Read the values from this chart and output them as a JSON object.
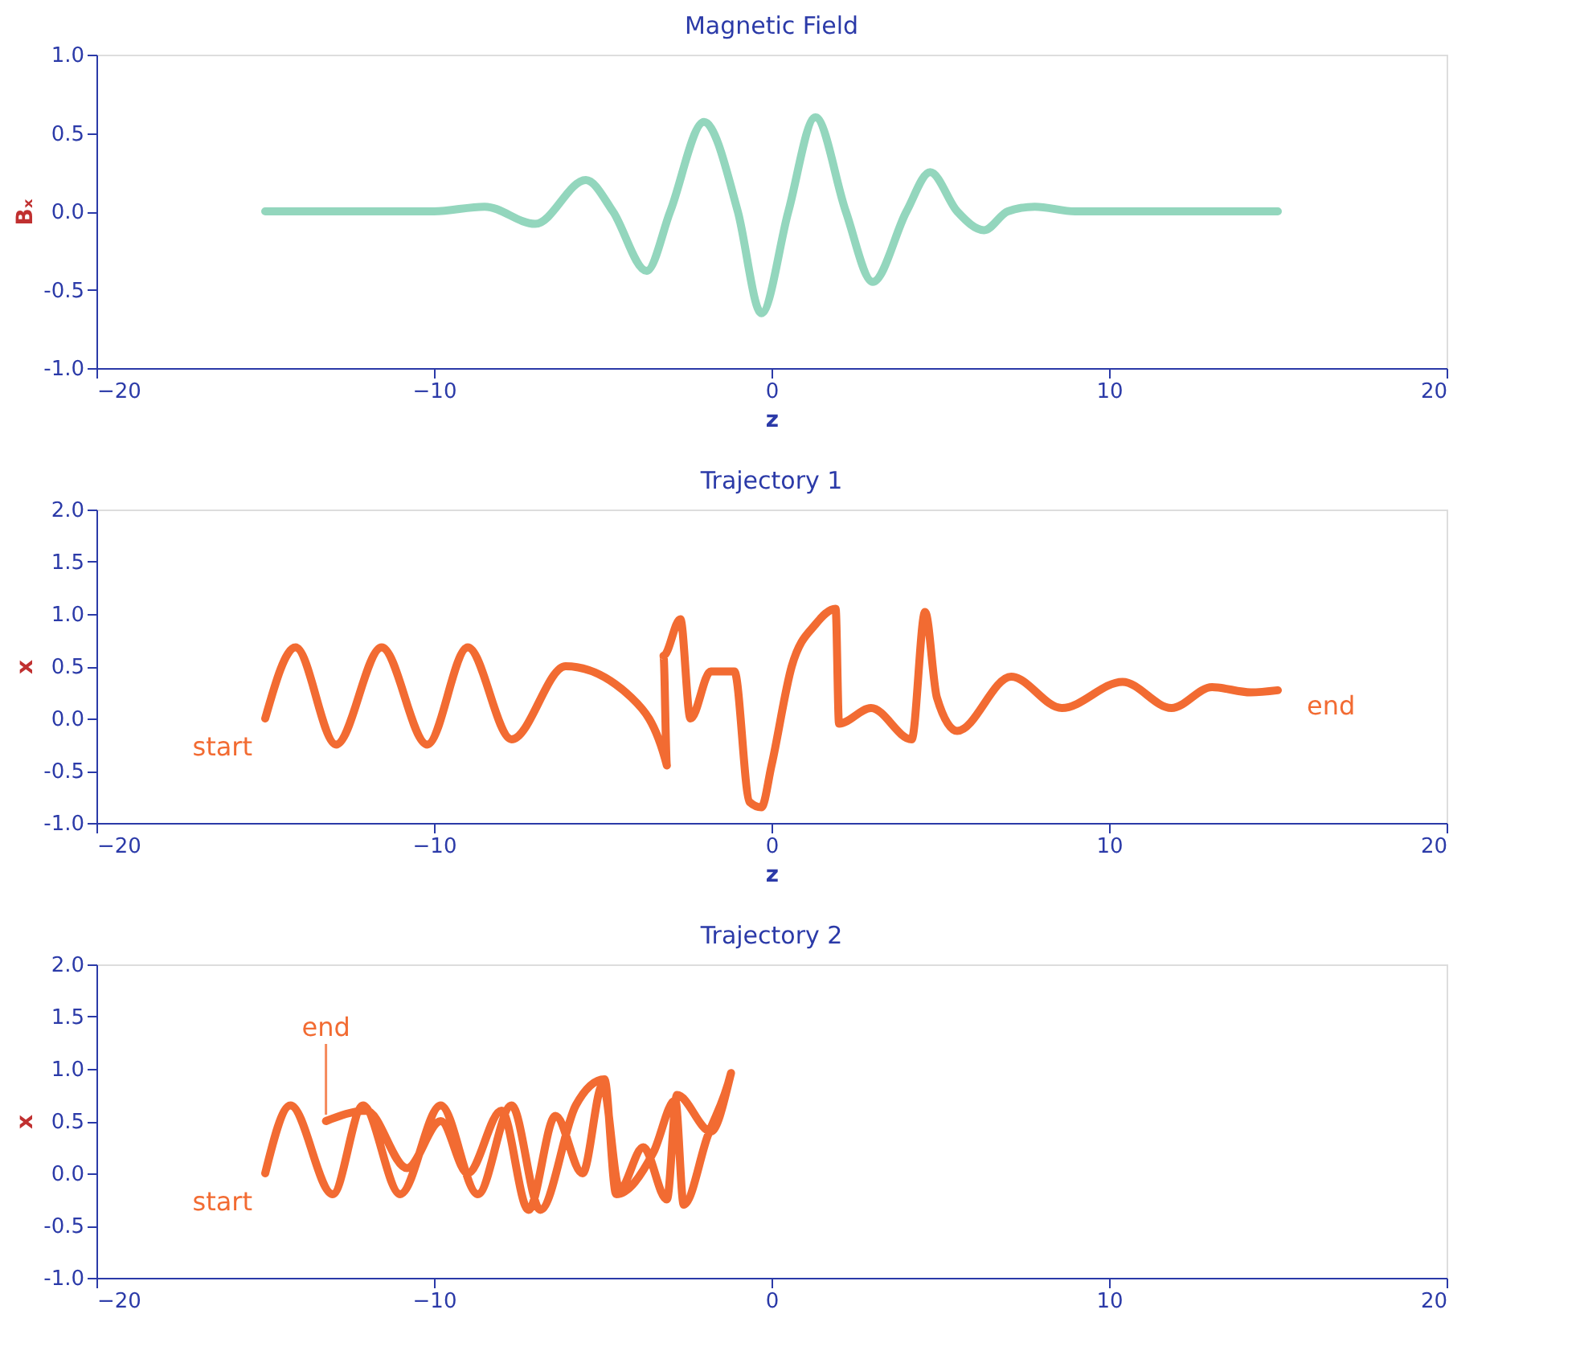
{
  "chart_data": [
    {
      "type": "line",
      "title": "Magnetic Field",
      "xlabel": "z",
      "ylabel": "Bₓ",
      "xlim": [
        -20,
        20
      ],
      "xticks": [
        -20,
        -10,
        0,
        10,
        20
      ],
      "ylim": [
        -1,
        1
      ],
      "yticks": [
        {
          "value": -1,
          "label": "-1.0"
        },
        {
          "value": -0.5,
          "label": "-0.5"
        },
        {
          "value": 0,
          "label": "0.0"
        },
        {
          "value": 0.5,
          "label": "0.5"
        },
        {
          "value": 1,
          "label": "1.0"
        }
      ],
      "grid": false,
      "series": [
        {
          "color": "#93d6bd",
          "x": [
            -15,
            -12,
            -10,
            -8.5,
            -7,
            -5.5,
            -4.7,
            -3.7,
            -3,
            -2,
            -1,
            -0.3,
            0.5,
            1.3,
            2.2,
            3,
            4,
            4.7,
            5.5,
            6.3,
            7,
            7.8,
            9,
            12,
            15
          ],
          "values": [
            0,
            0,
            0,
            0.03,
            -0.08,
            0.2,
            0,
            -0.38,
            0,
            0.57,
            0,
            -0.65,
            0,
            0.6,
            0,
            -0.45,
            0,
            0.25,
            0,
            -0.12,
            0,
            0.03,
            0,
            0,
            0
          ]
        }
      ]
    },
    {
      "type": "line",
      "title": "Trajectory 1",
      "xlabel": "z",
      "ylabel": "x",
      "xlim": [
        -20,
        20
      ],
      "xticks": [
        -20,
        -10,
        0,
        10,
        20
      ],
      "ylim": [
        -1,
        2
      ],
      "yticks": [
        {
          "value": -1,
          "label": "-1.0"
        },
        {
          "value": -0.5,
          "label": "-0.5"
        },
        {
          "value": 0,
          "label": "0.0"
        },
        {
          "value": 0.5,
          "label": "0.5"
        },
        {
          "value": 1,
          "label": "1.0"
        },
        {
          "value": 1.5,
          "label": "1.5"
        },
        {
          "value": 2,
          "label": "2.0"
        }
      ],
      "grid": false,
      "annotations": [
        {
          "text": "start",
          "x": -15,
          "y": 0
        },
        {
          "text": "end",
          "x": 15,
          "y": 0.27
        }
      ],
      "series": [
        {
          "color": "#f26b32",
          "x": [
            -15,
            -14.1,
            -12.9,
            -11.55,
            -10.2,
            -9,
            -7.7,
            -6.1,
            -4.15,
            -3.1,
            -3.2,
            -2.7,
            -2.4,
            -1.8,
            -1.1,
            -0.65,
            -0.3,
            0,
            0.6,
            1.3,
            1.9,
            2,
            2.95,
            4.15,
            4.55,
            4.9,
            5.5,
            7.1,
            8.6,
            10.4,
            11.85,
            13.05,
            14.2,
            15
          ],
          "values": [
            0,
            0.68,
            -0.25,
            0.68,
            -0.25,
            0.68,
            -0.2,
            0.5,
            0.2,
            -0.45,
            0.6,
            0.95,
            0,
            0.45,
            0.45,
            -0.8,
            -0.85,
            -0.45,
            0.5,
            0.9,
            1.05,
            -0.05,
            0.1,
            -0.2,
            1.02,
            0.2,
            -0.12,
            0.4,
            0.1,
            0.35,
            0.1,
            0.3,
            0.25,
            0.27
          ]
        }
      ]
    },
    {
      "type": "line",
      "title": "Trajectory 2",
      "ylabel": "x",
      "xlim": [
        -20,
        20
      ],
      "xticks": [
        -20,
        -10,
        0,
        10,
        20
      ],
      "ylim": [
        -1,
        2
      ],
      "yticks": [
        {
          "value": -1,
          "label": "-1.0"
        },
        {
          "value": -0.5,
          "label": "-0.5"
        },
        {
          "value": 0,
          "label": "0.0"
        },
        {
          "value": 0.5,
          "label": "0.5"
        },
        {
          "value": 1,
          "label": "1.0"
        },
        {
          "value": 1.5,
          "label": "1.5"
        },
        {
          "value": 2,
          "label": "2.0"
        }
      ],
      "grid": false,
      "annotations": [
        {
          "text": "start",
          "x": -15,
          "y": 0
        },
        {
          "text": "end",
          "x": -13.2,
          "y": 0.5
        }
      ],
      "series": [
        {
          "color": "#f26b32",
          "x": [
            -15,
            -14.25,
            -13,
            -12.1,
            -11,
            -9.8,
            -8.7,
            -7.7,
            -6.85,
            -5.8,
            -4.95,
            -4.6,
            -3.5,
            -2.85,
            -2.6,
            -1.9,
            -1.2,
            -1.8,
            -2.8,
            -3.1,
            -3.8,
            -4.5,
            -5,
            -5.6,
            -6.4,
            -7.2,
            -8,
            -9,
            -9.8,
            -10.8,
            -12,
            -13.2
          ],
          "values": [
            0,
            0.65,
            -0.2,
            0.65,
            -0.2,
            0.65,
            -0.2,
            0.65,
            -0.35,
            0.65,
            0.9,
            -0.2,
            0.2,
            0.7,
            -0.3,
            0.35,
            0.96,
            0.4,
            0.75,
            -0.25,
            0.25,
            -0.15,
            0.85,
            0,
            0.55,
            -0.35,
            0.6,
            0,
            0.5,
            0.05,
            0.6,
            0.5
          ]
        }
      ]
    }
  ]
}
